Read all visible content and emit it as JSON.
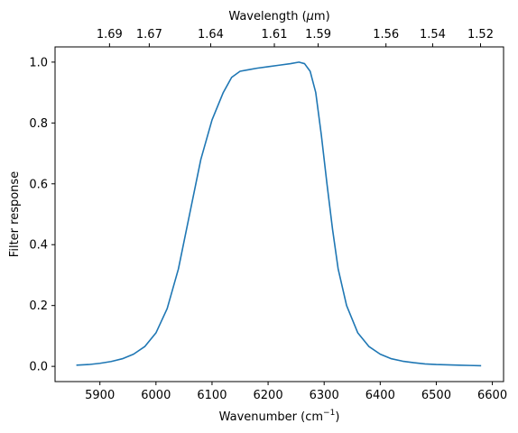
{
  "chart_data": {
    "type": "line",
    "xlabel": "Wavenumber (cm",
    "xlabel_sup": "−1",
    "xlabel_end": ")",
    "ylabel": "Filter response",
    "top_xlabel_prefix": "Wavelength (",
    "top_xlabel_mu": "μ",
    "top_xlabel_suffix": "m)",
    "xlim": [
      5820,
      6620
    ],
    "ylim": [
      -0.05,
      1.05
    ],
    "x_ticks": [
      5900,
      6000,
      6100,
      6200,
      6300,
      6400,
      6500,
      6600
    ],
    "y_ticks": [
      0.0,
      0.2,
      0.4,
      0.6,
      0.8,
      1.0
    ],
    "y_tick_labels": [
      "0.0",
      "0.2",
      "0.4",
      "0.6",
      "0.8",
      "1.0"
    ],
    "top_ticks": [
      "1.69",
      "1.67",
      "1.64",
      "1.61",
      "1.59",
      "1.56",
      "1.54",
      "1.52"
    ],
    "grid": false,
    "line_color": "#1f77b4",
    "series": [
      {
        "x": [
          5858,
          5880,
          5900,
          5920,
          5940,
          5960,
          5980,
          6000,
          6020,
          6040,
          6060,
          6080,
          6100,
          6120,
          6135,
          6150,
          6165,
          6180,
          6200,
          6220,
          6240,
          6255,
          6265,
          6275,
          6285,
          6295,
          6305,
          6315,
          6325,
          6340,
          6360,
          6380,
          6400,
          6420,
          6440,
          6460,
          6480,
          6500,
          6520,
          6540,
          6560,
          6580
        ],
        "y": [
          0.004,
          0.006,
          0.01,
          0.016,
          0.025,
          0.04,
          0.065,
          0.11,
          0.19,
          0.32,
          0.5,
          0.68,
          0.81,
          0.9,
          0.95,
          0.97,
          0.975,
          0.98,
          0.985,
          0.99,
          0.995,
          1.0,
          0.995,
          0.97,
          0.9,
          0.76,
          0.6,
          0.45,
          0.32,
          0.2,
          0.11,
          0.065,
          0.04,
          0.025,
          0.017,
          0.012,
          0.008,
          0.006,
          0.005,
          0.004,
          0.003,
          0.002
        ]
      }
    ]
  }
}
